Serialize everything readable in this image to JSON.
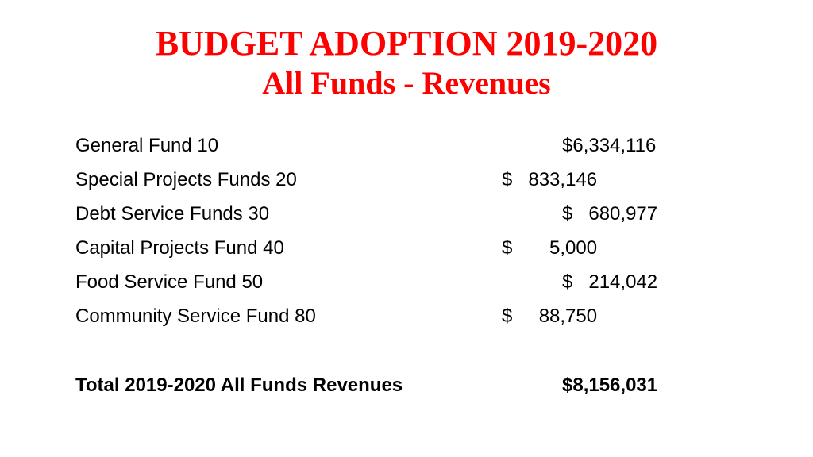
{
  "title": {
    "line1": "BUDGET ADOPTION 2019-2020",
    "line2": "All Funds - Revenues"
  },
  "rows": [
    {
      "label": "General Fund 10",
      "amount": "$6,334,116"
    },
    {
      "label": "Special Projects Funds 20",
      "amount": "$   833,146"
    },
    {
      "label": "Debt Service Funds 30",
      "amount": "$   680,977"
    },
    {
      "label": "Capital Projects Fund 40",
      "amount": "$       5,000"
    },
    {
      "label": "Food Service Fund 50",
      "amount": "$   214,042"
    },
    {
      "label": "Community Service Fund 80",
      "amount": "$     88,750"
    }
  ],
  "total": {
    "label": "Total 2019-2020 All Funds Revenues",
    "amount": "$8,156,031"
  },
  "colors": {
    "title": "#ff0000",
    "text": "#000000",
    "background": "#ffffff"
  }
}
